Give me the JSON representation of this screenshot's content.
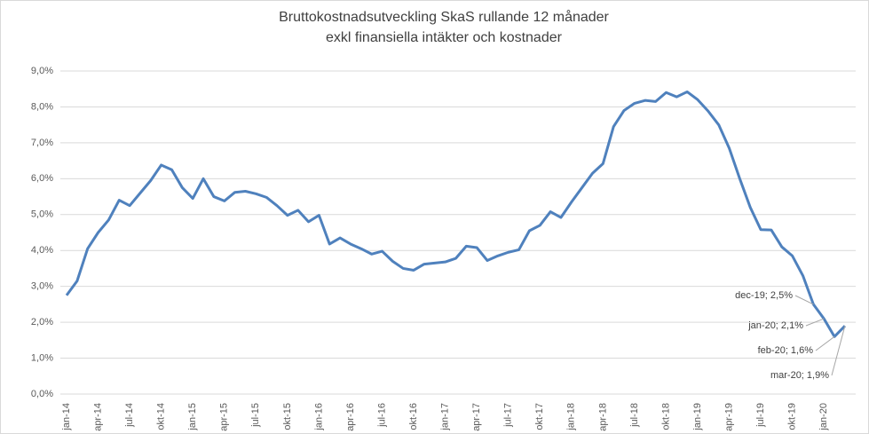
{
  "chart_data": {
    "type": "line",
    "title": "Bruttokostnadsutveckling SkaS rullande 12 månader",
    "subtitle": "exkl finansiella intäkter och kostnader",
    "categories": [
      "jan-14",
      null,
      null,
      "apr-14",
      null,
      null,
      "jul-14",
      null,
      null,
      "okt-14",
      null,
      null,
      "jan-15",
      null,
      null,
      "apr-15",
      null,
      null,
      "jul-15",
      null,
      null,
      "okt-15",
      null,
      null,
      "jan-16",
      null,
      null,
      "apr-16",
      null,
      null,
      "jul-16",
      null,
      null,
      "okt-16",
      null,
      null,
      "jan-17",
      null,
      null,
      "apr-17",
      null,
      null,
      "jul-17",
      null,
      null,
      "okt-17",
      null,
      null,
      "jan-18",
      null,
      null,
      "apr-18",
      null,
      null,
      "jul-18",
      null,
      null,
      "okt-18",
      null,
      null,
      "jan-19",
      null,
      null,
      "apr-19",
      null,
      null,
      "jul-19",
      null,
      null,
      "okt-19",
      null,
      null,
      "jan-20",
      null,
      null
    ],
    "values": [
      2.75,
      3.15,
      4.05,
      4.5,
      4.85,
      5.4,
      5.25,
      5.6,
      5.95,
      6.38,
      6.25,
      5.75,
      5.45,
      6.0,
      5.5,
      5.38,
      5.62,
      5.65,
      5.58,
      5.48,
      5.25,
      4.98,
      5.12,
      4.8,
      4.98,
      4.18,
      4.35,
      4.18,
      4.05,
      3.9,
      3.98,
      3.7,
      3.5,
      3.45,
      3.62,
      3.65,
      3.68,
      3.78,
      4.12,
      4.08,
      3.72,
      3.85,
      3.95,
      4.02,
      4.55,
      4.7,
      5.08,
      4.92,
      5.35,
      5.75,
      6.15,
      6.42,
      7.45,
      7.9,
      8.1,
      8.18,
      8.15,
      8.4,
      8.28,
      8.42,
      8.2,
      7.88,
      7.5,
      6.85,
      6.0,
      5.2,
      4.58,
      4.57,
      4.1,
      3.85,
      3.3,
      2.5,
      2.1,
      1.6,
      1.9
    ],
    "value_labels": [
      null,
      null,
      null,
      null,
      null,
      null,
      null,
      null,
      null,
      null,
      null,
      null,
      null,
      null,
      null,
      null,
      null,
      null,
      null,
      null,
      null,
      null,
      null,
      null,
      null,
      null,
      null,
      null,
      null,
      null,
      null,
      null,
      null,
      null,
      null,
      null,
      null,
      null,
      null,
      null,
      null,
      null,
      null,
      null,
      null,
      null,
      null,
      null,
      null,
      null,
      null,
      null,
      null,
      null,
      null,
      null,
      null,
      null,
      null,
      null,
      null,
      null,
      null,
      null,
      null,
      null,
      null,
      null,
      null,
      null,
      null,
      "dec-19; 2,5%",
      "jan-20; 2,1%",
      "feb-20; 1,6%",
      "mar-20; 1,9%"
    ],
    "color": "#4f81bd",
    "ylim": [
      0,
      9
    ],
    "yticks": [
      {
        "value": 0,
        "label": "0,0%"
      },
      {
        "value": 1,
        "label": "1,0%"
      },
      {
        "value": 2,
        "label": "2,0%"
      },
      {
        "value": 3,
        "label": "3,0%"
      },
      {
        "value": 4,
        "label": "4,0%"
      },
      {
        "value": 5,
        "label": "5,0%"
      },
      {
        "value": 6,
        "label": "6,0%"
      },
      {
        "value": 7,
        "label": "7,0%"
      },
      {
        "value": 8,
        "label": "8,0%"
      },
      {
        "value": 9,
        "label": "9,0%"
      }
    ],
    "grid": true
  }
}
